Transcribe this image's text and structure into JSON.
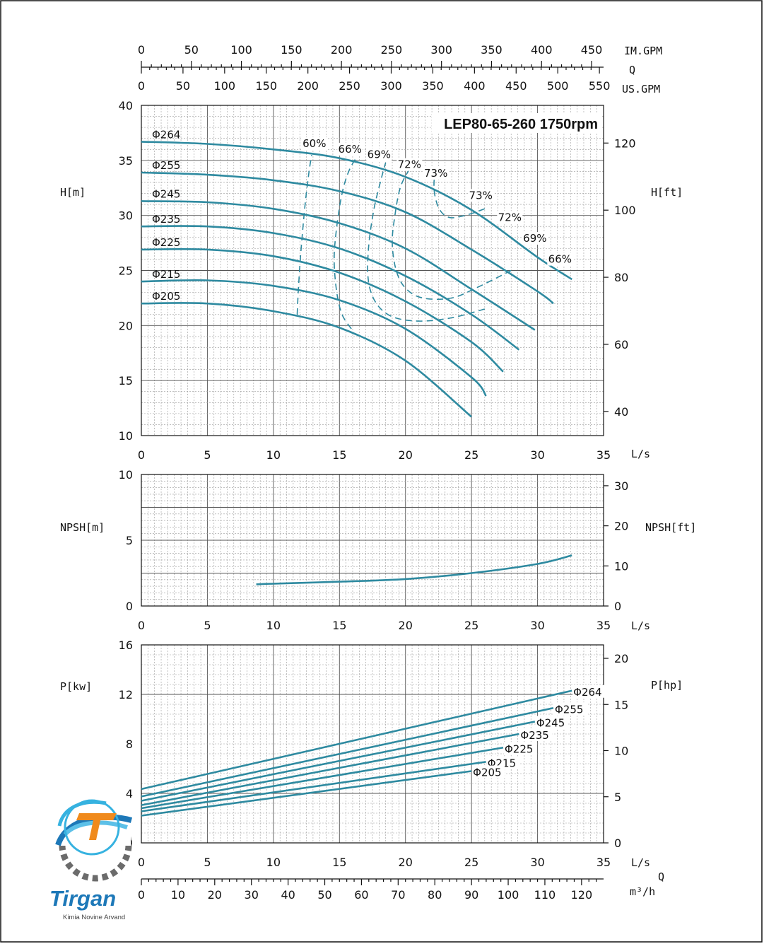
{
  "title": "LEP80-65-260 1750rpm",
  "units": {
    "top_q": "Q",
    "im_gpm": "IM.GPM",
    "us_gpm": "US.GPM",
    "h_m": "H[m]",
    "h_ft": "H[ft]",
    "npsh_m": "NPSH[m]",
    "npsh_ft": "NPSH[ft]",
    "p_kw": "P[kw]",
    "p_hp": "P[hp]",
    "ls": "L/s",
    "bottom_q": "Q",
    "m3h": "m³/h"
  },
  "logo": {
    "name": "Tirgan",
    "tagline": "Kimia Novine Arvand"
  },
  "colors": {
    "curve": "#2e8aa0"
  },
  "axes": {
    "q_ls": {
      "range": [
        0,
        35
      ],
      "ticks": [
        "0",
        "5",
        "10",
        "15",
        "20",
        "25",
        "30",
        "35"
      ]
    },
    "im_gpm": {
      "range": [
        0,
        462
      ],
      "ticks": [
        "0",
        "50",
        "100",
        "150",
        "200",
        "250",
        "300",
        "350",
        "400",
        "450"
      ]
    },
    "us_gpm": {
      "range": [
        0,
        555
      ],
      "ticks": [
        "0",
        "50",
        "100",
        "150",
        "200",
        "250",
        "300",
        "350",
        "400",
        "450",
        "500",
        "550"
      ]
    },
    "m3h": {
      "range": [
        0,
        126
      ],
      "ticks": [
        "0",
        "10",
        "20",
        "30",
        "40",
        "50",
        "60",
        "70",
        "80",
        "90",
        "100",
        "110",
        "120"
      ]
    },
    "h_m": {
      "range": [
        10,
        40
      ],
      "ticks": [
        "10",
        "15",
        "20",
        "25",
        "30",
        "35",
        "40"
      ]
    },
    "h_ft": {
      "ticks": [
        "40",
        "60",
        "80",
        "100",
        "120"
      ]
    },
    "npsh_m": {
      "range": [
        0,
        10
      ],
      "ticks": [
        "0",
        "5",
        "10"
      ]
    },
    "npsh_ft": {
      "ticks": [
        "0",
        "10",
        "20",
        "30"
      ]
    },
    "p_kw": {
      "range": [
        0,
        16
      ],
      "ticks": [
        "0",
        "4",
        "8",
        "12",
        "16"
      ]
    },
    "p_hp": {
      "ticks": [
        "0",
        "5",
        "10",
        "15",
        "20"
      ]
    }
  },
  "chart_data": [
    {
      "type": "line",
      "name": "head",
      "xlabel": "L/s",
      "ylabel": "H[m]",
      "xlim": [
        0,
        35
      ],
      "ylim": [
        10,
        40
      ],
      "grid": true,
      "series": [
        {
          "name": "Φ264",
          "x": [
            0,
            5,
            10,
            15,
            20,
            25,
            30,
            32.6
          ],
          "y": [
            36.7,
            36.5,
            36.0,
            35.2,
            33.5,
            30.5,
            26.2,
            24.2
          ]
        },
        {
          "name": "Φ255",
          "x": [
            0,
            5,
            10,
            15,
            20,
            25,
            30,
            31.2
          ],
          "y": [
            33.9,
            33.7,
            33.2,
            32.2,
            30.3,
            26.9,
            23.1,
            22.0
          ]
        },
        {
          "name": "Φ245",
          "x": [
            0,
            5,
            10,
            15,
            20,
            25,
            29.8
          ],
          "y": [
            31.3,
            31.2,
            30.6,
            29.3,
            27.0,
            23.3,
            19.6
          ]
        },
        {
          "name": "Φ235",
          "x": [
            0,
            5,
            10,
            15,
            20,
            25,
            28.6
          ],
          "y": [
            29.0,
            29.0,
            28.4,
            27.0,
            24.5,
            21.0,
            17.8
          ]
        },
        {
          "name": "Φ225",
          "x": [
            0,
            5,
            10,
            15,
            20,
            25,
            27.4
          ],
          "y": [
            26.9,
            26.9,
            26.3,
            24.8,
            22.2,
            18.5,
            15.8
          ]
        },
        {
          "name": "Φ215",
          "x": [
            0,
            5,
            10,
            15,
            20,
            25,
            26.1
          ],
          "y": [
            24.0,
            24.1,
            23.6,
            22.3,
            19.7,
            15.3,
            13.6
          ]
        },
        {
          "name": "Φ205",
          "x": [
            0,
            5,
            10,
            15,
            20,
            25
          ],
          "y": [
            22.0,
            22.0,
            21.3,
            19.8,
            16.8,
            11.7
          ]
        }
      ],
      "efficiency": [
        {
          "name": "60%",
          "x": [
            11.8,
            11.9,
            12.1,
            12.4,
            12.7,
            12.9
          ],
          "y": [
            21.0,
            23.5,
            27.0,
            31.0,
            34.0,
            35.5
          ]
        },
        {
          "name": "66%",
          "x": [
            15.9,
            15.2,
            14.8,
            14.6,
            14.8,
            15.2,
            15.7,
            16.3
          ],
          "y": [
            19.7,
            21.0,
            23.0,
            26.0,
            29.0,
            32.0,
            34.0,
            35.3
          ]
        },
        {
          "name": "69%",
          "x": [
            26.0,
            23.5,
            21.0,
            19.0,
            17.8,
            17.2,
            17.2,
            17.6,
            18.2,
            18.5
          ],
          "y": [
            21.5,
            20.7,
            20.4,
            20.8,
            22.0,
            24.0,
            27.0,
            30.5,
            33.5,
            34.8
          ]
        },
        {
          "name": "72%",
          "x": [
            28.0,
            25.5,
            23.5,
            21.3,
            20.0,
            19.3,
            19.0,
            19.2,
            19.6,
            20.2,
            20.5
          ],
          "y": [
            25.0,
            23.5,
            22.5,
            22.5,
            23.4,
            25.0,
            27.5,
            30.0,
            32.5,
            34.0,
            34.5
          ]
        },
        {
          "name": "73%",
          "x": [
            26.0,
            24.8,
            23.4,
            22.6,
            22.2,
            22.2,
            22.5
          ],
          "y": [
            30.6,
            30.1,
            29.8,
            30.5,
            32.0,
            33.5,
            34.0
          ]
        }
      ]
    },
    {
      "type": "line",
      "name": "npsh",
      "xlabel": "L/s",
      "ylabel": "NPSH[m]",
      "xlim": [
        0,
        35
      ],
      "ylim": [
        0,
        10
      ],
      "grid": true,
      "series": [
        {
          "name": "NPSH",
          "x": [
            8.7,
            10,
            15,
            20,
            25,
            30,
            32.6
          ],
          "y": [
            1.65,
            1.7,
            1.85,
            2.05,
            2.5,
            3.2,
            3.85
          ]
        }
      ]
    },
    {
      "type": "line",
      "name": "power",
      "xlabel": "L/s",
      "ylabel": "P[kw]",
      "xlim": [
        0,
        35
      ],
      "ylim": [
        0,
        16
      ],
      "grid": true,
      "series": [
        {
          "name": "Φ264",
          "x": [
            0,
            32.6
          ],
          "y": [
            4.35,
            12.3
          ]
        },
        {
          "name": "Φ255",
          "x": [
            0,
            31.2
          ],
          "y": [
            3.75,
            10.9
          ]
        },
        {
          "name": "Φ245",
          "x": [
            0,
            29.8
          ],
          "y": [
            3.4,
            9.8
          ]
        },
        {
          "name": "Φ235",
          "x": [
            0,
            28.6
          ],
          "y": [
            3.05,
            8.8
          ]
        },
        {
          "name": "Φ225",
          "x": [
            0,
            27.4
          ],
          "y": [
            2.8,
            7.7
          ]
        },
        {
          "name": "Φ215",
          "x": [
            0,
            26.1
          ],
          "y": [
            2.55,
            6.55
          ]
        },
        {
          "name": "Φ205",
          "x": [
            0,
            25
          ],
          "y": [
            2.2,
            5.8
          ]
        }
      ]
    }
  ]
}
